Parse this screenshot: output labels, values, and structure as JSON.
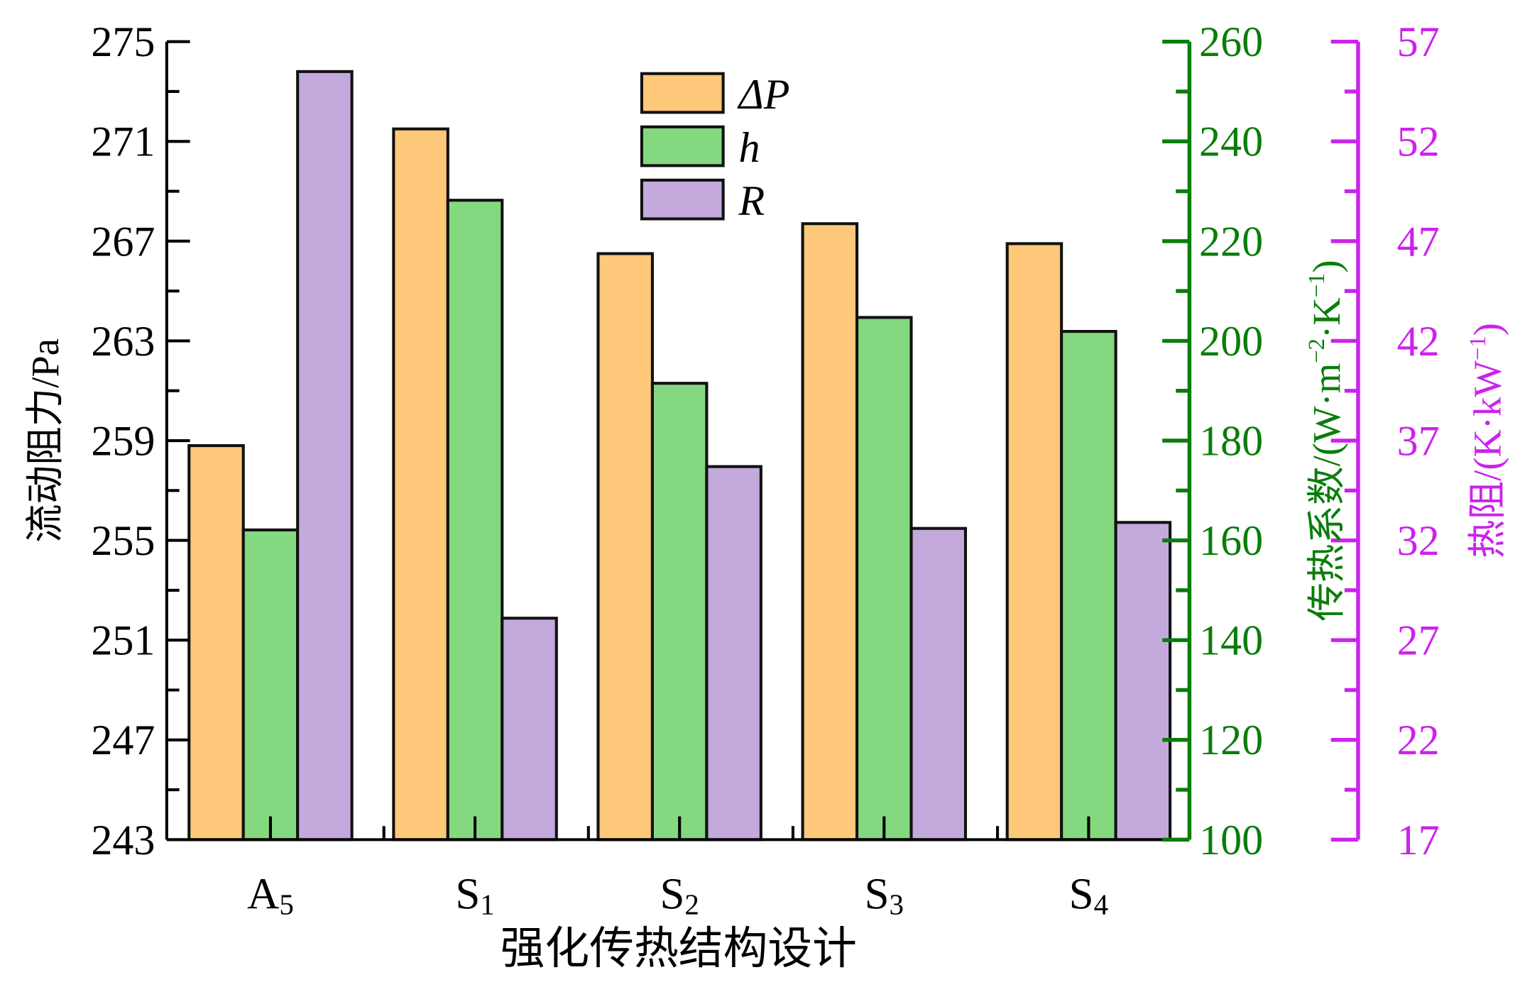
{
  "chart_data": {
    "type": "bar",
    "xlabel": "强化传热结构设计",
    "categories": [
      {
        "main": "A",
        "sub": "5"
      },
      {
        "main": "S",
        "sub": "1"
      },
      {
        "main": "S",
        "sub": "2"
      },
      {
        "main": "S",
        "sub": "3"
      },
      {
        "main": "S",
        "sub": "4"
      }
    ],
    "axes": {
      "left": {
        "label": "流动阻力/Pa",
        "ylim": [
          243,
          275
        ],
        "ticks": [
          243,
          247,
          251,
          255,
          259,
          263,
          267,
          271,
          275
        ],
        "color": "#000000"
      },
      "right1": {
        "label_main": "传热系数/(W·m",
        "label_sup1": "−2",
        "label_mid": "·K",
        "label_sup2": "−1",
        "label_end": ")",
        "ylim": [
          100,
          260
        ],
        "ticks": [
          100,
          120,
          140,
          160,
          180,
          200,
          220,
          240,
          260
        ],
        "color": "#0a7d0a"
      },
      "right2": {
        "label_main": "热阻/(K·kW",
        "label_sup": "−1",
        "label_end": ")",
        "ylim": [
          17,
          57
        ],
        "ticks": [
          17,
          22,
          27,
          32,
          37,
          42,
          47,
          52,
          57
        ],
        "color": "#cc22ee"
      }
    },
    "series": [
      {
        "name": "ΔP",
        "axis": "left",
        "color": "#fec87a",
        "values": [
          258.8,
          271.5,
          266.5,
          267.7,
          266.9
        ]
      },
      {
        "name": "h",
        "axis": "right1",
        "color": "#84d880",
        "values": [
          162.1,
          228.2,
          191.5,
          204.7,
          201.9
        ]
      },
      {
        "name": "R",
        "axis": "right2",
        "color": "#c3a9dc",
        "values": [
          55.5,
          28.1,
          35.7,
          32.6,
          32.9
        ]
      }
    ],
    "legend": {
      "placement": "top-center",
      "labels": [
        "ΔP",
        "h",
        "R"
      ]
    },
    "grid": false
  }
}
